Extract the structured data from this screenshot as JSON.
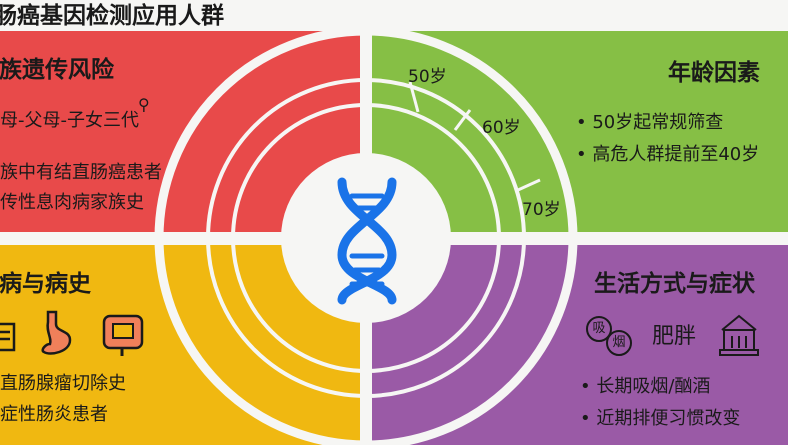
{
  "title": "肠癌基因检测应用人群",
  "colors": {
    "red": "#e84a4a",
    "green": "#86bf45",
    "yellow": "#f0b811",
    "purple": "#9a5aa6",
    "dna": "#1a73e8"
  },
  "family": {
    "heading": "家族遗传风险",
    "generations": "祖父母-父母-子女三代",
    "items": [
      "家族中有结直肠癌患者",
      "遗传性息肉病家族史"
    ]
  },
  "age": {
    "heading": "年龄因素",
    "rings": [
      "50岁",
      "60岁",
      "70岁"
    ],
    "items": [
      "• 50岁起常规筛查",
      "• 高危人群提前至40岁"
    ]
  },
  "disease": {
    "heading": "疾病与病史",
    "icons": [
      "report-icon",
      "stomach-icon",
      "intestine-icon"
    ],
    "items": [
      "结直肠腺瘤切除史",
      "炎症性肠炎患者"
    ]
  },
  "lifestyle": {
    "heading": "生活方式与症状",
    "smoking_icon": [
      "吸",
      "烟"
    ],
    "obesity": "肥胖",
    "items": [
      "• 长期吸烟/酗酒",
      "• 近期排便习惯改变"
    ]
  }
}
